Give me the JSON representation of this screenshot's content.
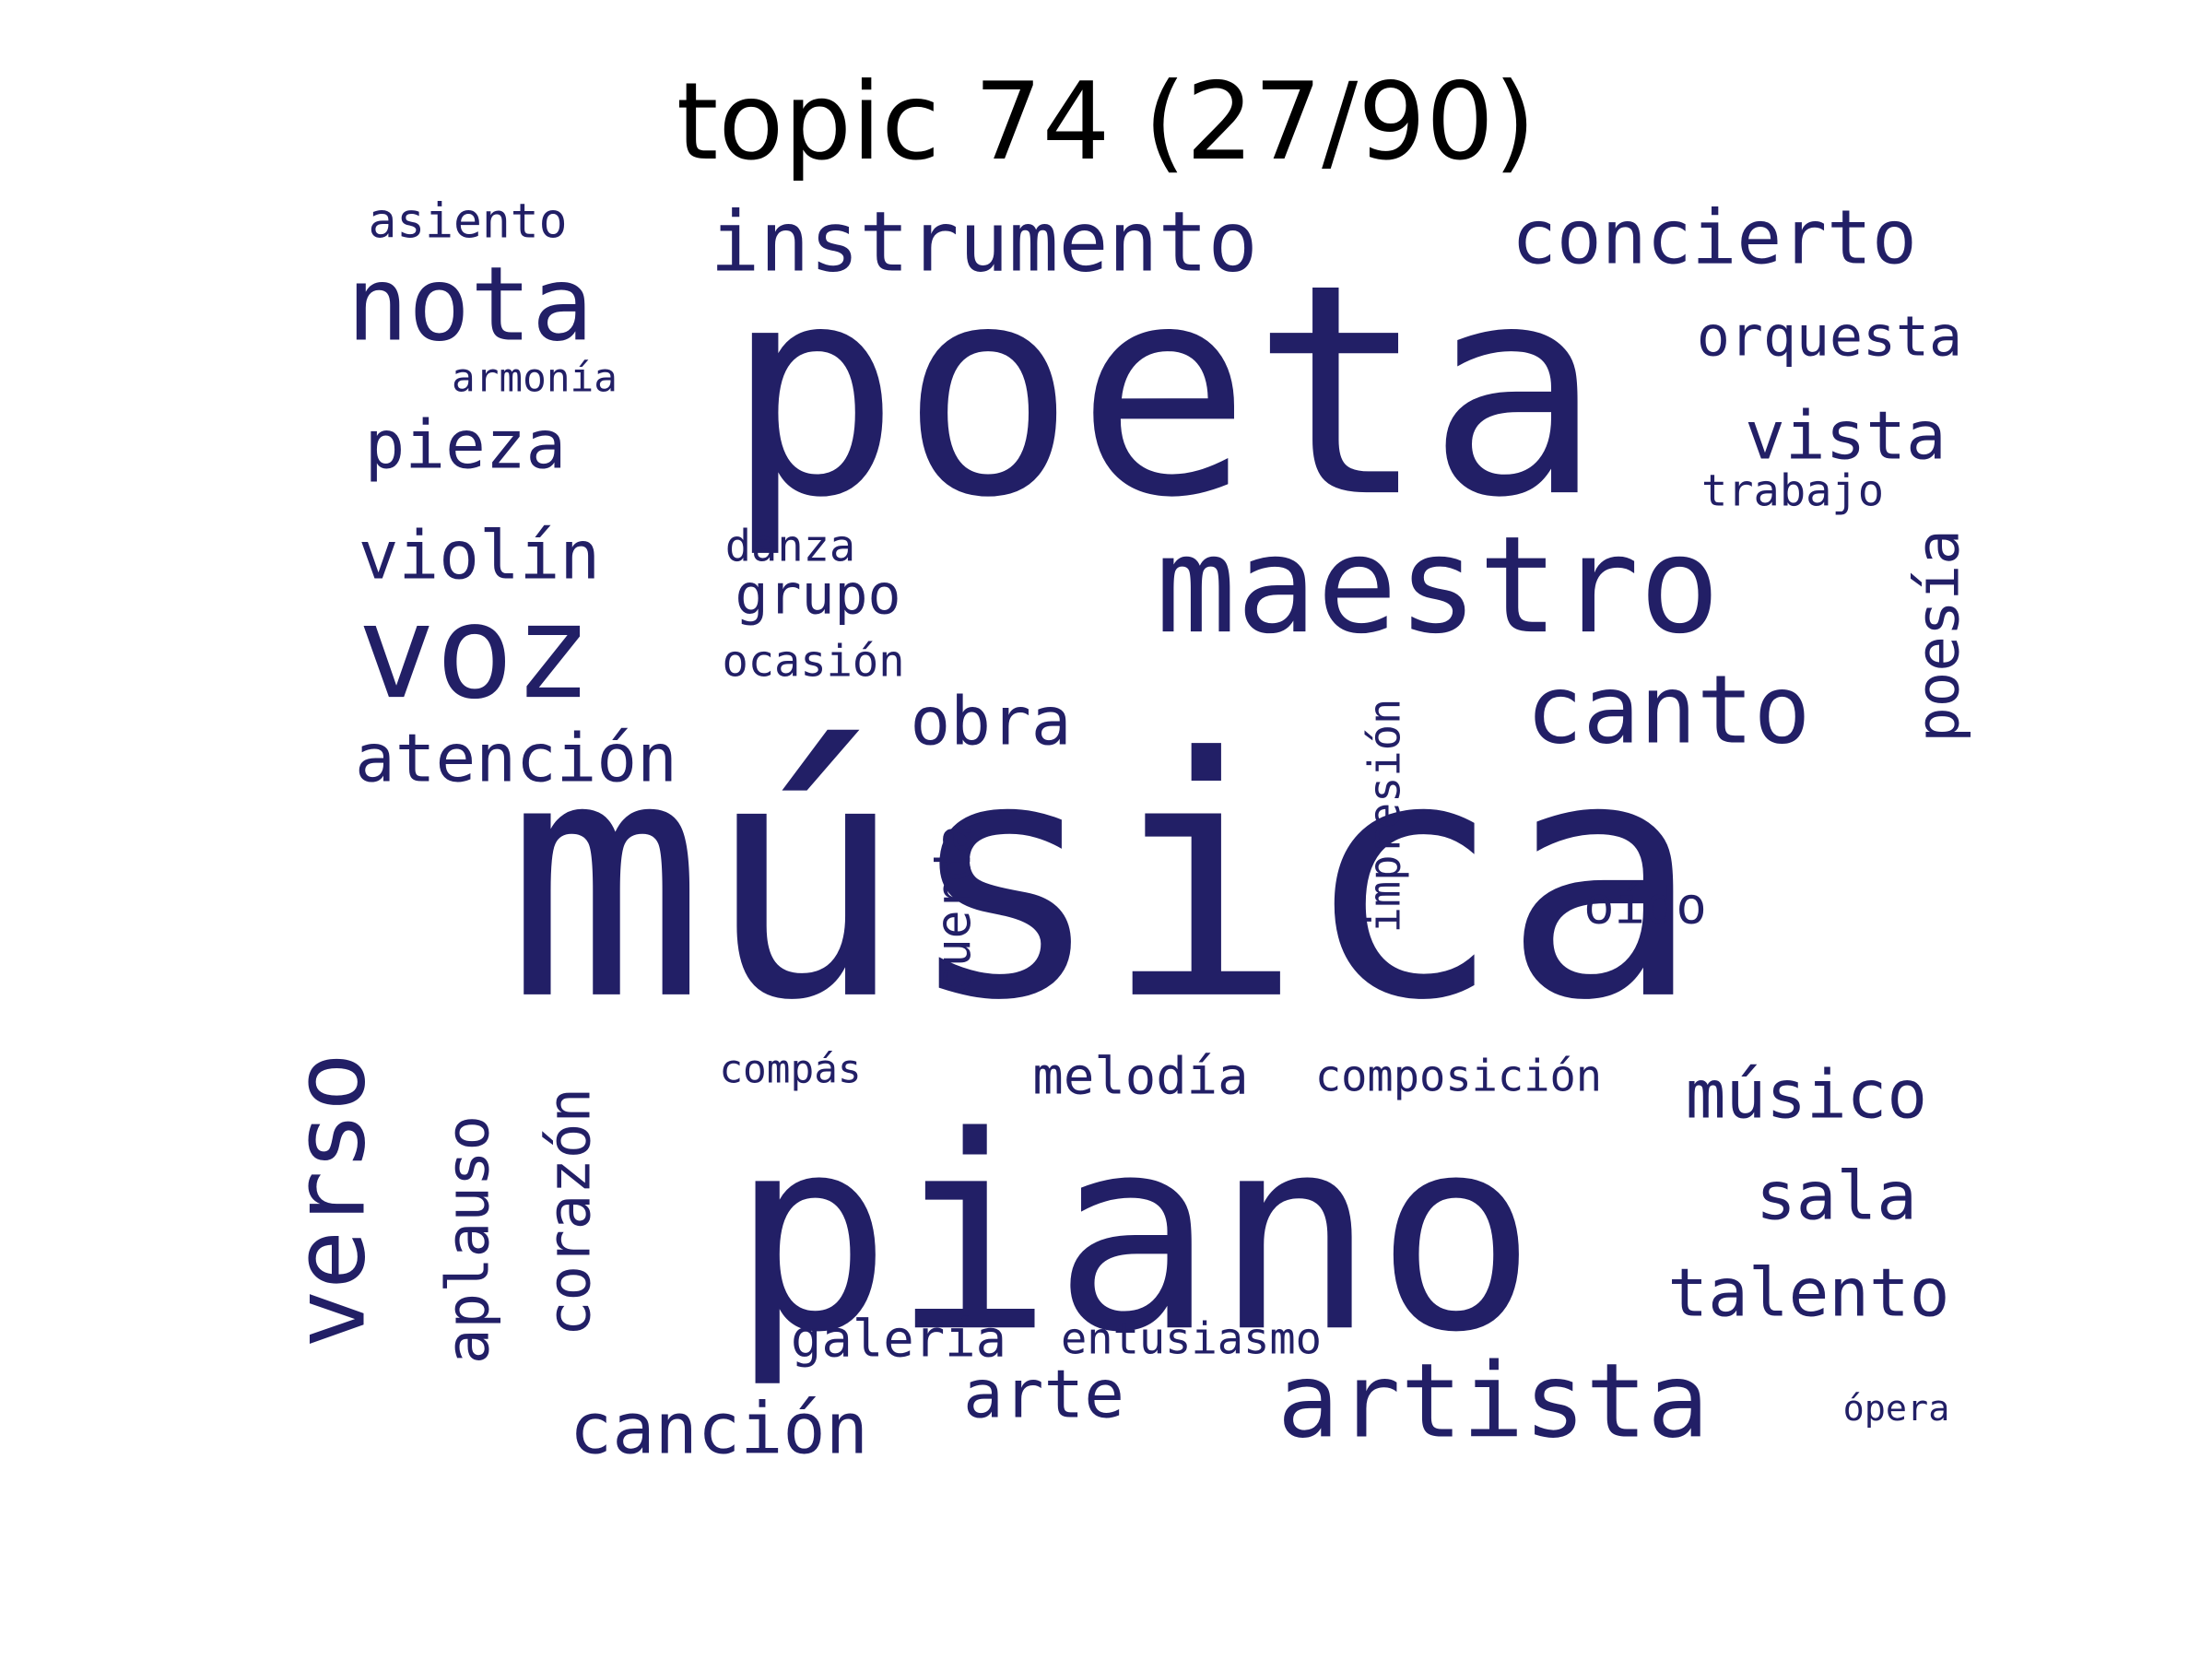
{
  "title": "topic 74 (27/90)",
  "colors": {
    "word": "#221f66",
    "background": "#ffffff",
    "title": "#000000"
  },
  "words": [
    {
      "text": "poeta",
      "weight": 1.0
    },
    {
      "text": "música",
      "weight": 0.98
    },
    {
      "text": "piano",
      "weight": 0.86
    },
    {
      "text": "maestro",
      "weight": 0.62
    },
    {
      "text": "voz",
      "weight": 0.6
    },
    {
      "text": "verso",
      "weight": 0.55
    },
    {
      "text": "nota",
      "weight": 0.45
    },
    {
      "text": "artista",
      "weight": 0.45
    },
    {
      "text": "canto",
      "weight": 0.44
    },
    {
      "text": "instrumento",
      "weight": 0.36
    },
    {
      "text": "aplauso",
      "weight": 0.33
    },
    {
      "text": "corazón",
      "weight": 0.31
    },
    {
      "text": "concierto",
      "weight": 0.3
    },
    {
      "text": "arte",
      "weight": 0.3
    },
    {
      "text": "canción",
      "weight": 0.3
    },
    {
      "text": "obra",
      "weight": 0.3
    },
    {
      "text": "músico",
      "weight": 0.3
    },
    {
      "text": "pieza",
      "weight": 0.29
    },
    {
      "text": "vista",
      "weight": 0.29
    },
    {
      "text": "poesía",
      "weight": 0.29
    },
    {
      "text": "violín",
      "weight": 0.27
    },
    {
      "text": "sala",
      "weight": 0.27
    },
    {
      "text": "talento",
      "weight": 0.27
    },
    {
      "text": "atención",
      "weight": 0.26
    },
    {
      "text": "cuerda",
      "weight": 0.22
    },
    {
      "text": "orquesta",
      "weight": 0.22
    },
    {
      "text": "melodía",
      "weight": 0.21
    },
    {
      "text": "grupo",
      "weight": 0.2
    },
    {
      "text": "oído",
      "weight": 0.2
    },
    {
      "text": "asiento",
      "weight": 0.19
    },
    {
      "text": "galería",
      "weight": 0.19
    },
    {
      "text": "impresión",
      "weight": 0.18
    },
    {
      "text": "danza",
      "weight": 0.17
    },
    {
      "text": "composición",
      "weight": 0.17
    },
    {
      "text": "entusiasmo",
      "weight": 0.16
    },
    {
      "text": "trabajo",
      "weight": 0.16
    },
    {
      "text": "ocasión",
      "weight": 0.16
    },
    {
      "text": "armonía",
      "weight": 0.16
    },
    {
      "text": "compás",
      "weight": 0.16
    },
    {
      "text": "ópera",
      "weight": 0.16
    }
  ]
}
